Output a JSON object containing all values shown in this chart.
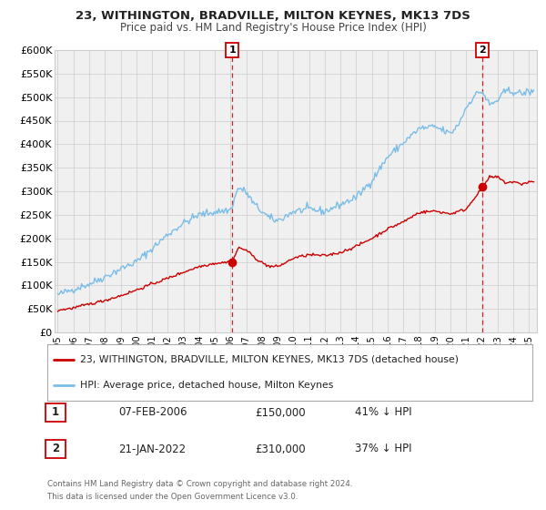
{
  "title": "23, WITHINGTON, BRADVILLE, MILTON KEYNES, MK13 7DS",
  "subtitle": "Price paid vs. HM Land Registry's House Price Index (HPI)",
  "legend_line1": "23, WITHINGTON, BRADVILLE, MILTON KEYNES, MK13 7DS (detached house)",
  "legend_line2": "HPI: Average price, detached house, Milton Keynes",
  "sale1_label": "1",
  "sale1_date": "07-FEB-2006",
  "sale1_price": "£150,000",
  "sale1_hpi": "41% ↓ HPI",
  "sale1_year": 2006.1,
  "sale1_value": 150000,
  "sale2_label": "2",
  "sale2_date": "21-JAN-2022",
  "sale2_price": "£310,000",
  "sale2_hpi": "37% ↓ HPI",
  "sale2_year": 2022.05,
  "sale2_value": 310000,
  "footer1": "Contains HM Land Registry data © Crown copyright and database right 2024.",
  "footer2": "This data is licensed under the Open Government Licence v3.0.",
  "hpi_color": "#7abde8",
  "sale_color": "#cc0000",
  "vline_color": "#cc0000",
  "background_color": "#ffffff",
  "grid_color": "#cccccc",
  "ax_facecolor": "#f0f0f0",
  "ylim": [
    0,
    600000
  ],
  "xlim_start": 1994.8,
  "xlim_end": 2025.5,
  "yticks": [
    0,
    50000,
    100000,
    150000,
    200000,
    250000,
    300000,
    350000,
    400000,
    450000,
    500000,
    550000,
    600000
  ],
  "ytick_labels": [
    "£0",
    "£50K",
    "£100K",
    "£150K",
    "£200K",
    "£250K",
    "£300K",
    "£350K",
    "£400K",
    "£450K",
    "£500K",
    "£550K",
    "£600K"
  ],
  "xticks": [
    1995,
    1996,
    1997,
    1998,
    1999,
    2000,
    2001,
    2002,
    2003,
    2004,
    2005,
    2006,
    2007,
    2008,
    2009,
    2010,
    2011,
    2012,
    2013,
    2014,
    2015,
    2016,
    2017,
    2018,
    2019,
    2020,
    2021,
    2022,
    2023,
    2024,
    2025
  ]
}
